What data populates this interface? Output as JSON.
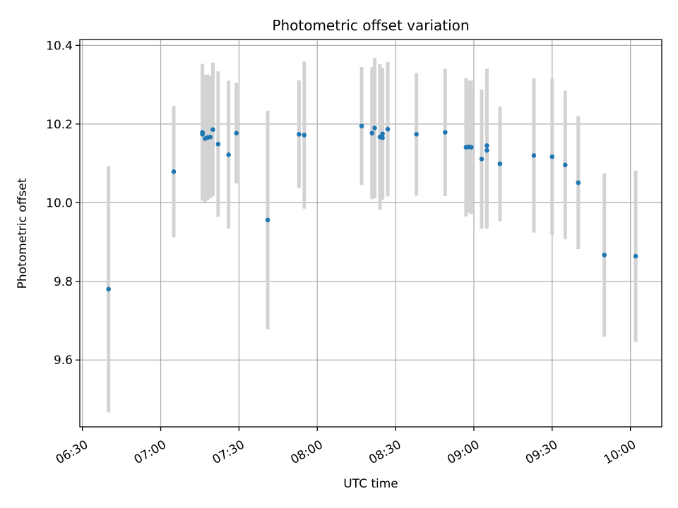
{
  "chart_data": {
    "type": "scatter",
    "title": "Photometric offset variation",
    "xlabel": "UTC time",
    "ylabel": "Photometric offset",
    "x_ticks": [
      "06:30",
      "07:00",
      "07:30",
      "08:00",
      "08:30",
      "09:00",
      "09:30",
      "10:00"
    ],
    "y_ticks": [
      "9.6",
      "9.8",
      "10.0",
      "10.2",
      "10.4"
    ],
    "x_range": [
      "06:29",
      "10:12"
    ],
    "ylim": [
      9.43,
      10.415
    ],
    "grid": true,
    "colors": {
      "points": "#1f77b4",
      "error_bars": "#d3d3d3",
      "grid": "#b0b0b0"
    },
    "series": [
      {
        "x": [
          "06:40",
          "07:05",
          "07:16",
          "07:16",
          "07:17",
          "07:18",
          "07:19",
          "07:20",
          "07:22",
          "07:26",
          "07:29",
          "07:41",
          "07:53",
          "07:55",
          "08:17",
          "08:21",
          "08:21",
          "08:22",
          "08:24",
          "08:25",
          "08:25",
          "08:27",
          "08:38",
          "08:49",
          "08:57",
          "08:58",
          "08:59",
          "09:03",
          "09:05",
          "09:05",
          "09:10",
          "09:23",
          "09:30",
          "09:35",
          "09:40",
          "09:50",
          "10:02"
        ],
        "y": [
          9.78,
          10.079,
          10.179,
          10.174,
          10.163,
          10.166,
          10.167,
          10.186,
          10.149,
          10.122,
          10.177,
          9.956,
          10.174,
          10.172,
          10.195,
          10.177,
          10.177,
          10.19,
          10.167,
          10.165,
          10.175,
          10.187,
          10.174,
          10.179,
          10.141,
          10.142,
          10.141,
          10.111,
          10.145,
          10.133,
          10.099,
          10.12,
          10.117,
          10.096,
          10.051,
          9.867,
          9.864
        ],
        "y_err": [
          0.313,
          0.167,
          0.174,
          0.15,
          0.162,
          0.16,
          0.155,
          0.17,
          0.185,
          0.188,
          0.128,
          0.278,
          0.137,
          0.187,
          0.15,
          0.168,
          0.158,
          0.178,
          0.185,
          0.157,
          0.167,
          0.171,
          0.156,
          0.162,
          0.176,
          0.168,
          0.17,
          0.177,
          0.195,
          0.199,
          0.146,
          0.196,
          0.199,
          0.189,
          0.169,
          0.208,
          0.218
        ]
      }
    ]
  }
}
